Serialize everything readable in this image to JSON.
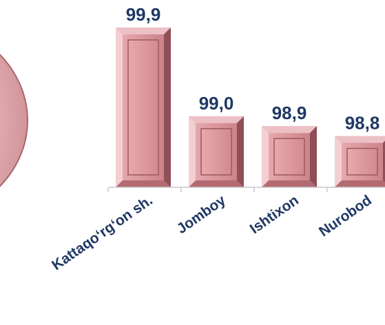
{
  "chart_data": {
    "type": "bar",
    "categories": [
      "Kattaqo‘rg‘on sh.",
      "Jomboy",
      "Ishtixon",
      "Nurobod"
    ],
    "values": [
      99.9,
      99.0,
      98.9,
      98.8
    ],
    "value_labels": [
      "99,9",
      "99,0",
      "98,9",
      "98,8"
    ],
    "title": "",
    "xlabel": "",
    "ylabel": "",
    "grid": false,
    "legend": "none"
  },
  "colors": {
    "bar_front": "#d9949a",
    "bar_top": "#ecc0c4",
    "bar_left": "#f3cfd2",
    "bar_right": "#8f4f56",
    "bar_bottom": "#b46a72",
    "bar_inner": "#de9ca2",
    "value_text": "#1f3864",
    "category_text": "#1f3864",
    "axis": "#c8c8c8",
    "ring": "#b97b80"
  }
}
